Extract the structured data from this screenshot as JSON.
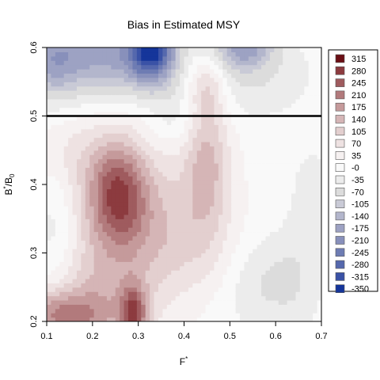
{
  "chart_data": {
    "type": "heatmap",
    "title": "Bias in Estimated MSY",
    "xlabel_base": "F",
    "xlabel_sup": "*",
    "ylabel_base": "B",
    "ylabel_sup": "*",
    "ylabel_rest": "/B",
    "ylabel_sub": "0",
    "xlim": [
      0.1,
      0.7
    ],
    "ylim": [
      0.2,
      0.6
    ],
    "x_ticks": [
      "0.1",
      "0.2",
      "0.3",
      "0.4",
      "0.5",
      "0.6",
      "0.7"
    ],
    "y_ticks": [
      "0.2",
      "0.3",
      "0.4",
      "0.5",
      "0.6"
    ],
    "reference_line_y": 0.5,
    "legend": {
      "placement": "right",
      "levels": [
        "315",
        "280",
        "245",
        "210",
        "175",
        "140",
        "105",
        "70",
        "35",
        "-0",
        "-35",
        "-70",
        "-105",
        "-140",
        "-175",
        "-210",
        "-245",
        "-280",
        "-315",
        "-350"
      ],
      "colors": [
        "#6b0f15",
        "#8c3b3f",
        "#9f5b5e",
        "#b27a7c",
        "#c59a9b",
        "#d5b5b6",
        "#e3cfcf",
        "#eee2e2",
        "#f6f1f1",
        "#f9f9f9",
        "#ececec",
        "#dcdcdc",
        "#c9cad6",
        "#b3b6cc",
        "#9da2c3",
        "#8890bb",
        "#6e7cb3",
        "#5568ad",
        "#3a52a6",
        "#15359a"
      ]
    },
    "surface_blobs": [
      {
        "x": 0.255,
        "y": 0.39,
        "sx": 0.045,
        "sy": 0.055,
        "v": 195
      },
      {
        "x": 0.29,
        "y": 0.21,
        "sx": 0.02,
        "sy": 0.03,
        "v": 200
      },
      {
        "x": 0.12,
        "y": 0.21,
        "sx": 0.07,
        "sy": 0.025,
        "v": 150
      },
      {
        "x": 0.3,
        "y": 0.36,
        "sx": 0.12,
        "sy": 0.07,
        "v": 100
      },
      {
        "x": 0.45,
        "y": 0.44,
        "sx": 0.035,
        "sy": 0.07,
        "v": 120
      },
      {
        "x": 0.215,
        "y": 0.22,
        "sx": 0.09,
        "sy": 0.06,
        "v": 110
      },
      {
        "x": 0.15,
        "y": 0.45,
        "sx": 0.06,
        "sy": 0.04,
        "v": 45
      },
      {
        "x": 0.45,
        "y": 0.545,
        "sx": 0.03,
        "sy": 0.03,
        "v": 90
      },
      {
        "x": 0.4,
        "y": 0.3,
        "sx": 0.1,
        "sy": 0.05,
        "v": 40
      },
      {
        "x": 0.33,
        "y": 0.6,
        "sx": 0.035,
        "sy": 0.035,
        "v": -300
      },
      {
        "x": 0.22,
        "y": 0.59,
        "sx": 0.09,
        "sy": 0.04,
        "v": -170
      },
      {
        "x": 0.11,
        "y": 0.58,
        "sx": 0.04,
        "sy": 0.04,
        "v": -110
      },
      {
        "x": 0.53,
        "y": 0.6,
        "sx": 0.045,
        "sy": 0.02,
        "v": -150
      },
      {
        "x": 0.53,
        "y": 0.56,
        "sx": 0.09,
        "sy": 0.04,
        "v": -60
      },
      {
        "x": 0.56,
        "y": 0.26,
        "sx": 0.05,
        "sy": 0.05,
        "v": -55
      },
      {
        "x": 0.64,
        "y": 0.26,
        "sx": 0.04,
        "sy": 0.05,
        "v": -45
      },
      {
        "x": 0.12,
        "y": 0.33,
        "sx": 0.035,
        "sy": 0.07,
        "v": -60
      },
      {
        "x": 0.68,
        "y": 0.38,
        "sx": 0.04,
        "sy": 0.06,
        "v": -30
      },
      {
        "x": 0.385,
        "y": 0.5,
        "sx": 0.04,
        "sy": 0.03,
        "v": -40
      }
    ]
  }
}
